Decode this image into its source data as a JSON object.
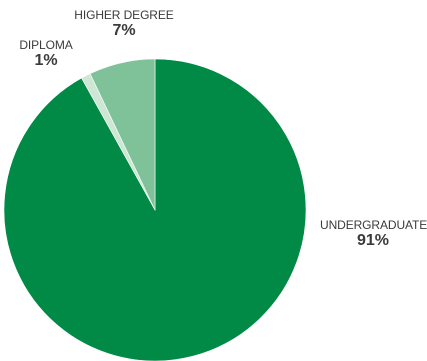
{
  "chart_data": {
    "type": "pie",
    "title": "",
    "start_angle_deg": 0,
    "direction": "clockwise",
    "slices": [
      {
        "label": "UNDERGRADUATE",
        "value": 91,
        "display": "91%",
        "color": "#008a45"
      },
      {
        "label": "DIPLOMA",
        "value": 1,
        "display": "1%",
        "color": "#cde7d4"
      },
      {
        "label": "HIGHER DEGREE",
        "value": 7,
        "display": "7%",
        "color": "#7fc29a"
      }
    ]
  },
  "colors": {
    "text": "#3b3b3b",
    "separator": "#ffffff",
    "background": "#ffffff"
  }
}
